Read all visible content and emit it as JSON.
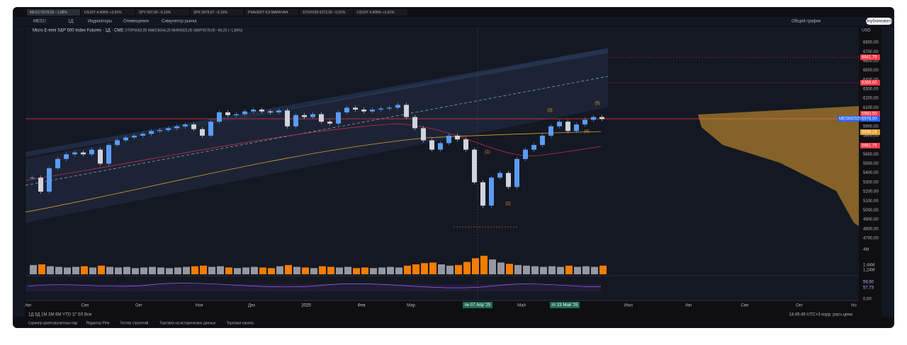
{
  "tabs": [
    "MES1! 5978,00 −1,88%",
    "US10Y 4,409% +3,61%",
    "SPY 597,00 −0,15%",
    "SPX 5976,97 −0,15%",
    "PSAVERT 4,9 MARKVAA",
    "STOXX50 5272,00 −0,51%",
    "US10Y 4,409% +3,61%"
  ],
  "toolbar": {
    "symbol": "MES1!",
    "interval": "1Д",
    "indicators": "Индикаторы",
    "alerts": "Оповещения",
    "replay": "Симулятор рынка",
    "layout": "Общий график",
    "publish": "Опубликовать"
  },
  "legend": {
    "title": "Micro E-mini S&P 500 Index Futures · 1Д · CME",
    "ohlc": "ОТКР6043,00 МАКС6044,25 МИН5925,00 ЗАКР5978,00 −84,25 (−1,86%)"
  },
  "chart": {
    "currency": "USD",
    "price_labels": [
      "6800,00",
      "6700,00",
      "6600,00",
      "6500,00",
      "6400,00",
      "6300,00",
      "6200,00",
      "6100,00",
      "6000,00",
      "5900,00",
      "5800,00",
      "5700,00",
      "5600,00",
      "5500,00",
      "5400,00",
      "5300,00",
      "5200,00",
      "5100,00",
      "5000,00",
      "4900,00",
      "4800,00",
      "4700,00"
    ],
    "price_tags": [
      "6641,75",
      "6359,00",
      "5983,50",
      "5978,00",
      "5836,24",
      "5661,75"
    ],
    "contract": "MESM2025",
    "volume_labels": [
      "4M",
      "1,44M",
      "1,24M"
    ],
    "rsi_labels": [
      "59,50",
      "57,73",
      "0,00"
    ],
    "months": [
      "Авг",
      "Сен",
      "Окт",
      "Ноя",
      "Дек",
      "2025",
      "Фев",
      "Мар",
      "Май",
      "Июл",
      "Авг",
      "Сен",
      "Окт",
      "Но"
    ],
    "date_markers": [
      "пн 07 Апр '25",
      "пт 23 Май '25"
    ],
    "waves": [
      "(1)",
      "(2)",
      "(3)",
      "(4)",
      "(5)"
    ],
    "closes": [
      5350,
      5200,
      5450,
      5550,
      5600,
      5620,
      5600,
      5650,
      5500,
      5700,
      5750,
      5780,
      5800,
      5820,
      5850,
      5860,
      5880,
      5900,
      5920,
      5870,
      5800,
      5950,
      6050,
      6020,
      6030,
      6060,
      6080,
      6060,
      6050,
      6070,
      5900,
      6020,
      6000,
      6030,
      5950,
      5930,
      6050,
      6100,
      6080,
      6060,
      6080,
      6090,
      6100,
      6130,
      6000,
      5880,
      5750,
      5650,
      5720,
      5800,
      5760,
      5650,
      5300,
      5050,
      5350,
      5400,
      5250,
      5550,
      5650,
      5700,
      5800,
      5900,
      5950,
      5850,
      5920,
      5970,
      6000,
      5978
    ],
    "volumes": [
      1.5,
      1.6,
      1.3,
      1.2,
      1.1,
      1.2,
      1.3,
      1.1,
      1.4,
      1.2,
      1.1,
      1.2,
      1.0,
      1.1,
      1.2,
      1.1,
      1.0,
      1.1,
      1.2,
      1.3,
      1.4,
      1.2,
      1.3,
      1.1,
      1.0,
      1.1,
      1.2,
      1.1,
      1.0,
      1.3,
      1.5,
      1.2,
      1.1,
      1.0,
      1.3,
      1.2,
      1.1,
      1.2,
      1.0,
      1.1,
      1.0,
      1.1,
      1.2,
      1.1,
      1.4,
      1.6,
      1.8,
      1.9,
      1.6,
      1.4,
      1.5,
      2.0,
      2.6,
      3.0,
      2.4,
      1.9,
      1.7,
      1.5,
      1.4,
      1.3,
      1.2,
      1.3,
      1.2,
      1.4,
      1.2,
      1.3,
      1.2,
      1.4
    ]
  },
  "bottom": {
    "periods": "1Д 5Д 1М 3М 6М YTD 1Г 5Л Все",
    "clock": "14:49:49 UTC+3 корр. расч.цена"
  },
  "panels": [
    "Скринер криптовалютных пар",
    "Редактор Pine",
    "Тестер стратегий",
    "Торговля на исторических данных",
    "Торговая панель"
  ]
}
